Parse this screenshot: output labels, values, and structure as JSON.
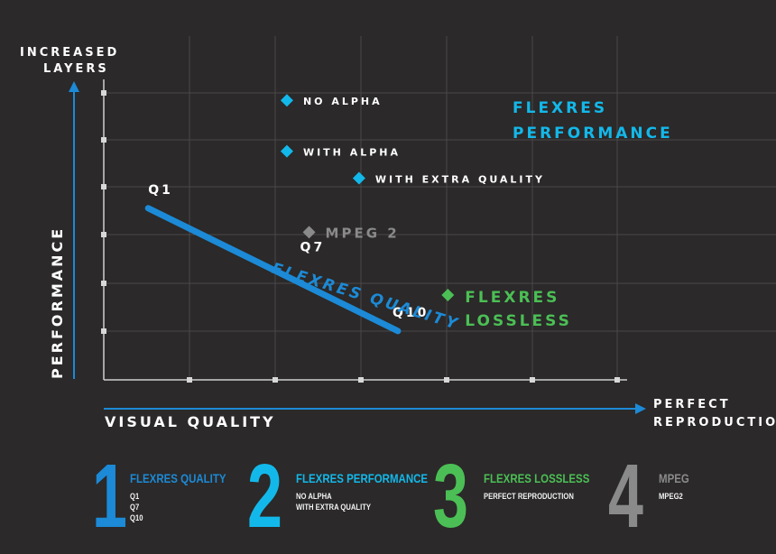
{
  "colors": {
    "background": "#2b2929",
    "quality_blue": "#1c8ad6",
    "performance_cyan": "#13b8ea",
    "lossless_green": "#4bbf55",
    "mpeg_gray": "#8a8a8a",
    "grid": "#4a4848"
  },
  "chart_data": {
    "type": "scatter",
    "x_axis_label": "VISUAL QUALITY",
    "x_axis_end_label": [
      "PERFECT",
      "REPRODUCTION"
    ],
    "y_axis_label": "PERFORMANCE",
    "y_axis_end_label": [
      "INCREASED",
      "LAYERS"
    ],
    "grid": true,
    "xlim": [
      0,
      10
    ],
    "ylim": [
      0,
      10
    ],
    "series": [
      {
        "name": "FLEXRES QUALITY",
        "type": "line",
        "color": "#1c8ad6",
        "points": [
          {
            "label": "Q1",
            "x": 0.8,
            "y": 5.7
          },
          {
            "label": "Q7",
            "x": 3.7,
            "y": 3.6
          },
          {
            "label": "Q10",
            "x": 5.3,
            "y": 1.6
          }
        ]
      },
      {
        "name": "FLEXRES PERFORMANCE",
        "type": "scatter",
        "color": "#13b8ea",
        "points": [
          {
            "label": "NO ALPHA",
            "x": 3.3,
            "y": 9.3
          },
          {
            "label": "WITH ALPHA",
            "x": 3.3,
            "y": 7.6
          },
          {
            "label": "WITH EXTRA QUALITY",
            "x": 4.6,
            "y": 6.7
          }
        ]
      },
      {
        "name": "MPEG 2",
        "type": "scatter",
        "color": "#8a8a8a",
        "points": [
          {
            "label": "MPEG 2",
            "x": 3.7,
            "y": 4.9
          }
        ]
      },
      {
        "name": "FLEXRES LOSSLESS",
        "type": "scatter",
        "color": "#4bbf55",
        "points": [
          {
            "label": "FLEXRES LOSSLESS",
            "x": 6.2,
            "y": 2.8
          }
        ]
      }
    ],
    "annotations": [
      {
        "text": "FLEXRES QUALITY",
        "color": "#1c8ad6"
      },
      {
        "text": [
          "FLEXRES",
          "PERFORMANCE"
        ],
        "color": "#13b8ea"
      },
      {
        "text": [
          "FLEXRES",
          "LOSSLESS"
        ],
        "color": "#4bbf55"
      }
    ]
  },
  "legend": [
    {
      "number": "1",
      "title": "FLEXRES QUALITY",
      "items": [
        "Q1",
        "Q7",
        "Q10"
      ],
      "color": "#1c8ad6"
    },
    {
      "number": "2",
      "title": "FLEXRES PERFORMANCE",
      "items": [
        "NO ALPHA",
        "WITH EXTRA QUALITY"
      ],
      "color": "#13b8ea"
    },
    {
      "number": "3",
      "title": "FLEXRES LOSSLESS",
      "items": [
        "PERFECT REPRODUCTION"
      ],
      "color": "#4bbf55"
    },
    {
      "number": "4",
      "title": "MPEG",
      "items": [
        "MPEG2"
      ],
      "color": "#8a8a8a"
    }
  ]
}
